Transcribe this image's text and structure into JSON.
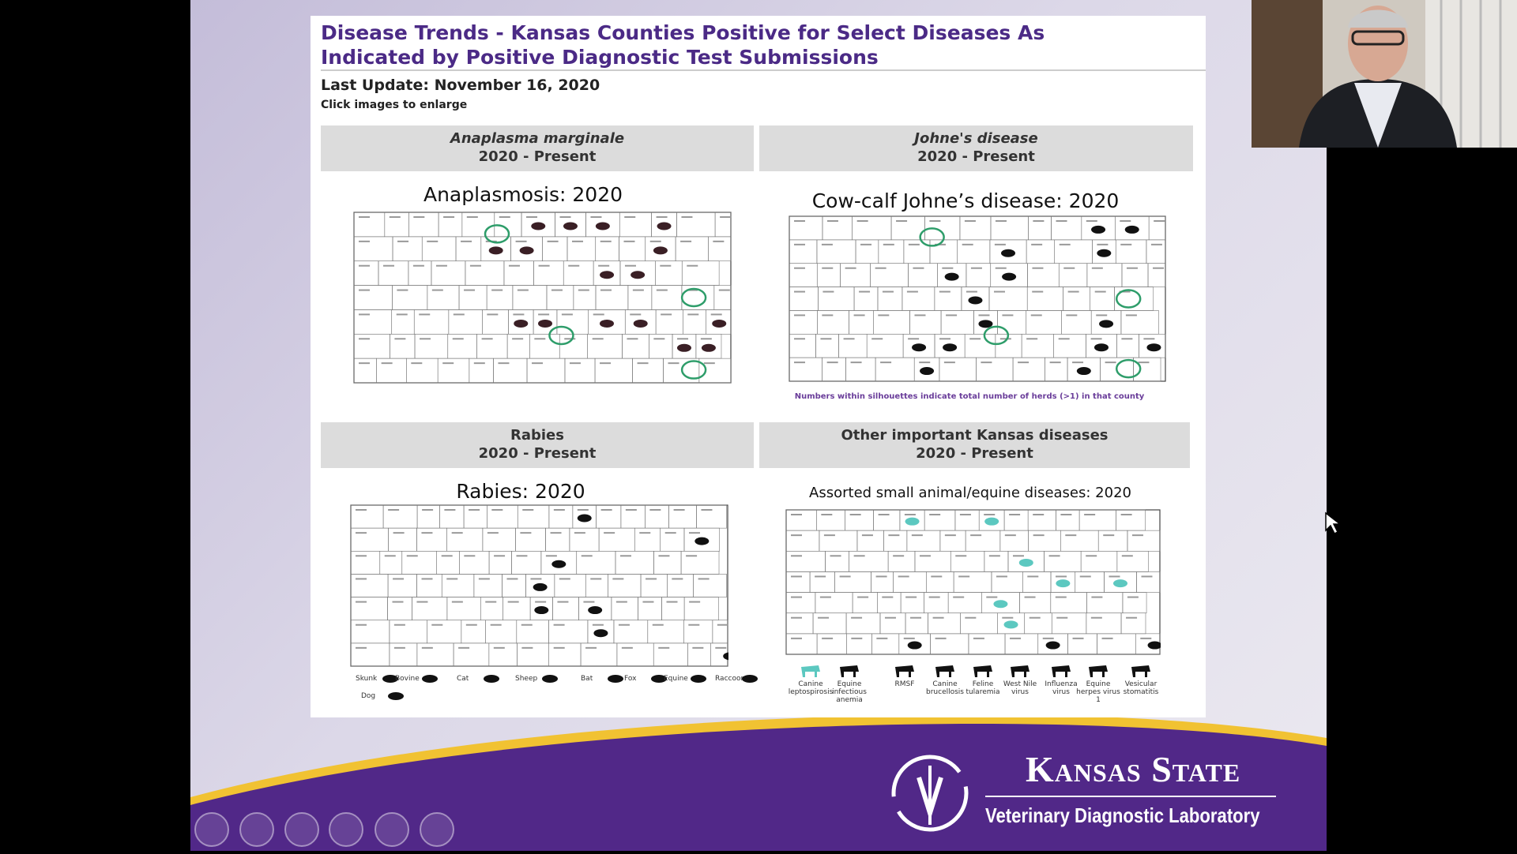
{
  "slide": {
    "title": [
      "Disease Trends - Kansas Counties Positive for Select Diseases As",
      "Indicated by Positive Diagnostic Test Submissions"
    ],
    "last_update": "Last Update: November 16, 2020",
    "instruction": "Click images to enlarge",
    "panels": [
      {
        "name": "Anaplasma marginale",
        "period": "2020 - Present",
        "map_title": "Anaplasmosis: 2020"
      },
      {
        "name": "Johne's disease",
        "period": "2020 - Present",
        "map_title": "Cow-calf Johne’s disease: 2020",
        "note": "Numbers within silhouettes indicate total number of herds (>1) in that county"
      },
      {
        "name": "Rabies",
        "period": "2020 - Present",
        "map_title": "Rabies: 2020",
        "legend": [
          "Skunk",
          "Bovine",
          "Cat",
          "Sheep",
          "Bat",
          "Fox",
          "Equine",
          "Raccoon",
          "Dog"
        ]
      },
      {
        "name": "Other important Kansas diseases",
        "period": "2020 - Present",
        "map_title": "Assorted small animal/equine diseases: 2020",
        "legend": [
          "Canine leptospirosis",
          "Equine infectious anemia",
          "RMSF",
          "Canine brucellosis",
          "Feline tularemia",
          "West Nile virus",
          "Influenza virus",
          "Equine herpes virus 1",
          "Vesicular stomatitis"
        ]
      }
    ],
    "logo": {
      "name": "Kansas State",
      "subtitle": "Veterinary Diagnostic Laboratory"
    }
  }
}
